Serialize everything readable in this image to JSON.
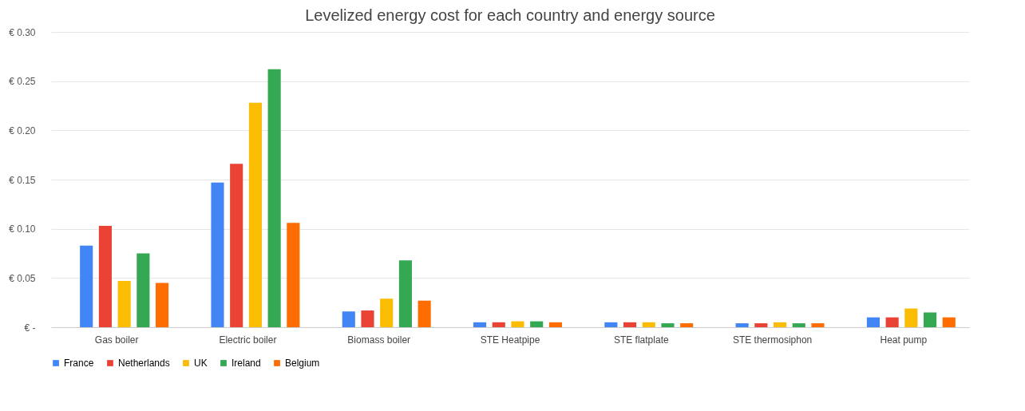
{
  "chart_data": {
    "type": "bar",
    "title": "Levelized energy cost for each country and energy source",
    "categories": [
      "Gas boiler",
      "Electric boiler",
      "Biomass boiler",
      "STE Heatpipe",
      "STE flatplate",
      "STE thermosiphon",
      "Heat pump"
    ],
    "series": [
      {
        "name": "France",
        "color": "#4285f4",
        "values": [
          0.083,
          0.147,
          0.016,
          0.005,
          0.005,
          0.004,
          0.01
        ]
      },
      {
        "name": "Netherlands",
        "color": "#ea4335",
        "values": [
          0.103,
          0.166,
          0.017,
          0.005,
          0.005,
          0.004,
          0.01
        ]
      },
      {
        "name": "UK",
        "color": "#fbbc04",
        "values": [
          0.047,
          0.228,
          0.029,
          0.006,
          0.005,
          0.005,
          0.019
        ]
      },
      {
        "name": "Ireland",
        "color": "#34a853",
        "values": [
          0.075,
          0.262,
          0.068,
          0.006,
          0.004,
          0.004,
          0.015
        ]
      },
      {
        "name": "Belgium",
        "color": "#ff6d01",
        "values": [
          0.045,
          0.106,
          0.027,
          0.005,
          0.004,
          0.004,
          0.01
        ]
      }
    ],
    "ylim": [
      0,
      0.3
    ],
    "yticks": [
      {
        "value": 0,
        "label": "€ -"
      },
      {
        "value": 0.05,
        "label": "€ 0.05"
      },
      {
        "value": 0.1,
        "label": "€ 0.10"
      },
      {
        "value": 0.15,
        "label": "€ 0.15"
      },
      {
        "value": 0.2,
        "label": "€ 0.20"
      },
      {
        "value": 0.25,
        "label": "€ 0.25"
      },
      {
        "value": 0.3,
        "label": "€ 0.30"
      }
    ],
    "grid": "y",
    "legend": "bottom"
  }
}
